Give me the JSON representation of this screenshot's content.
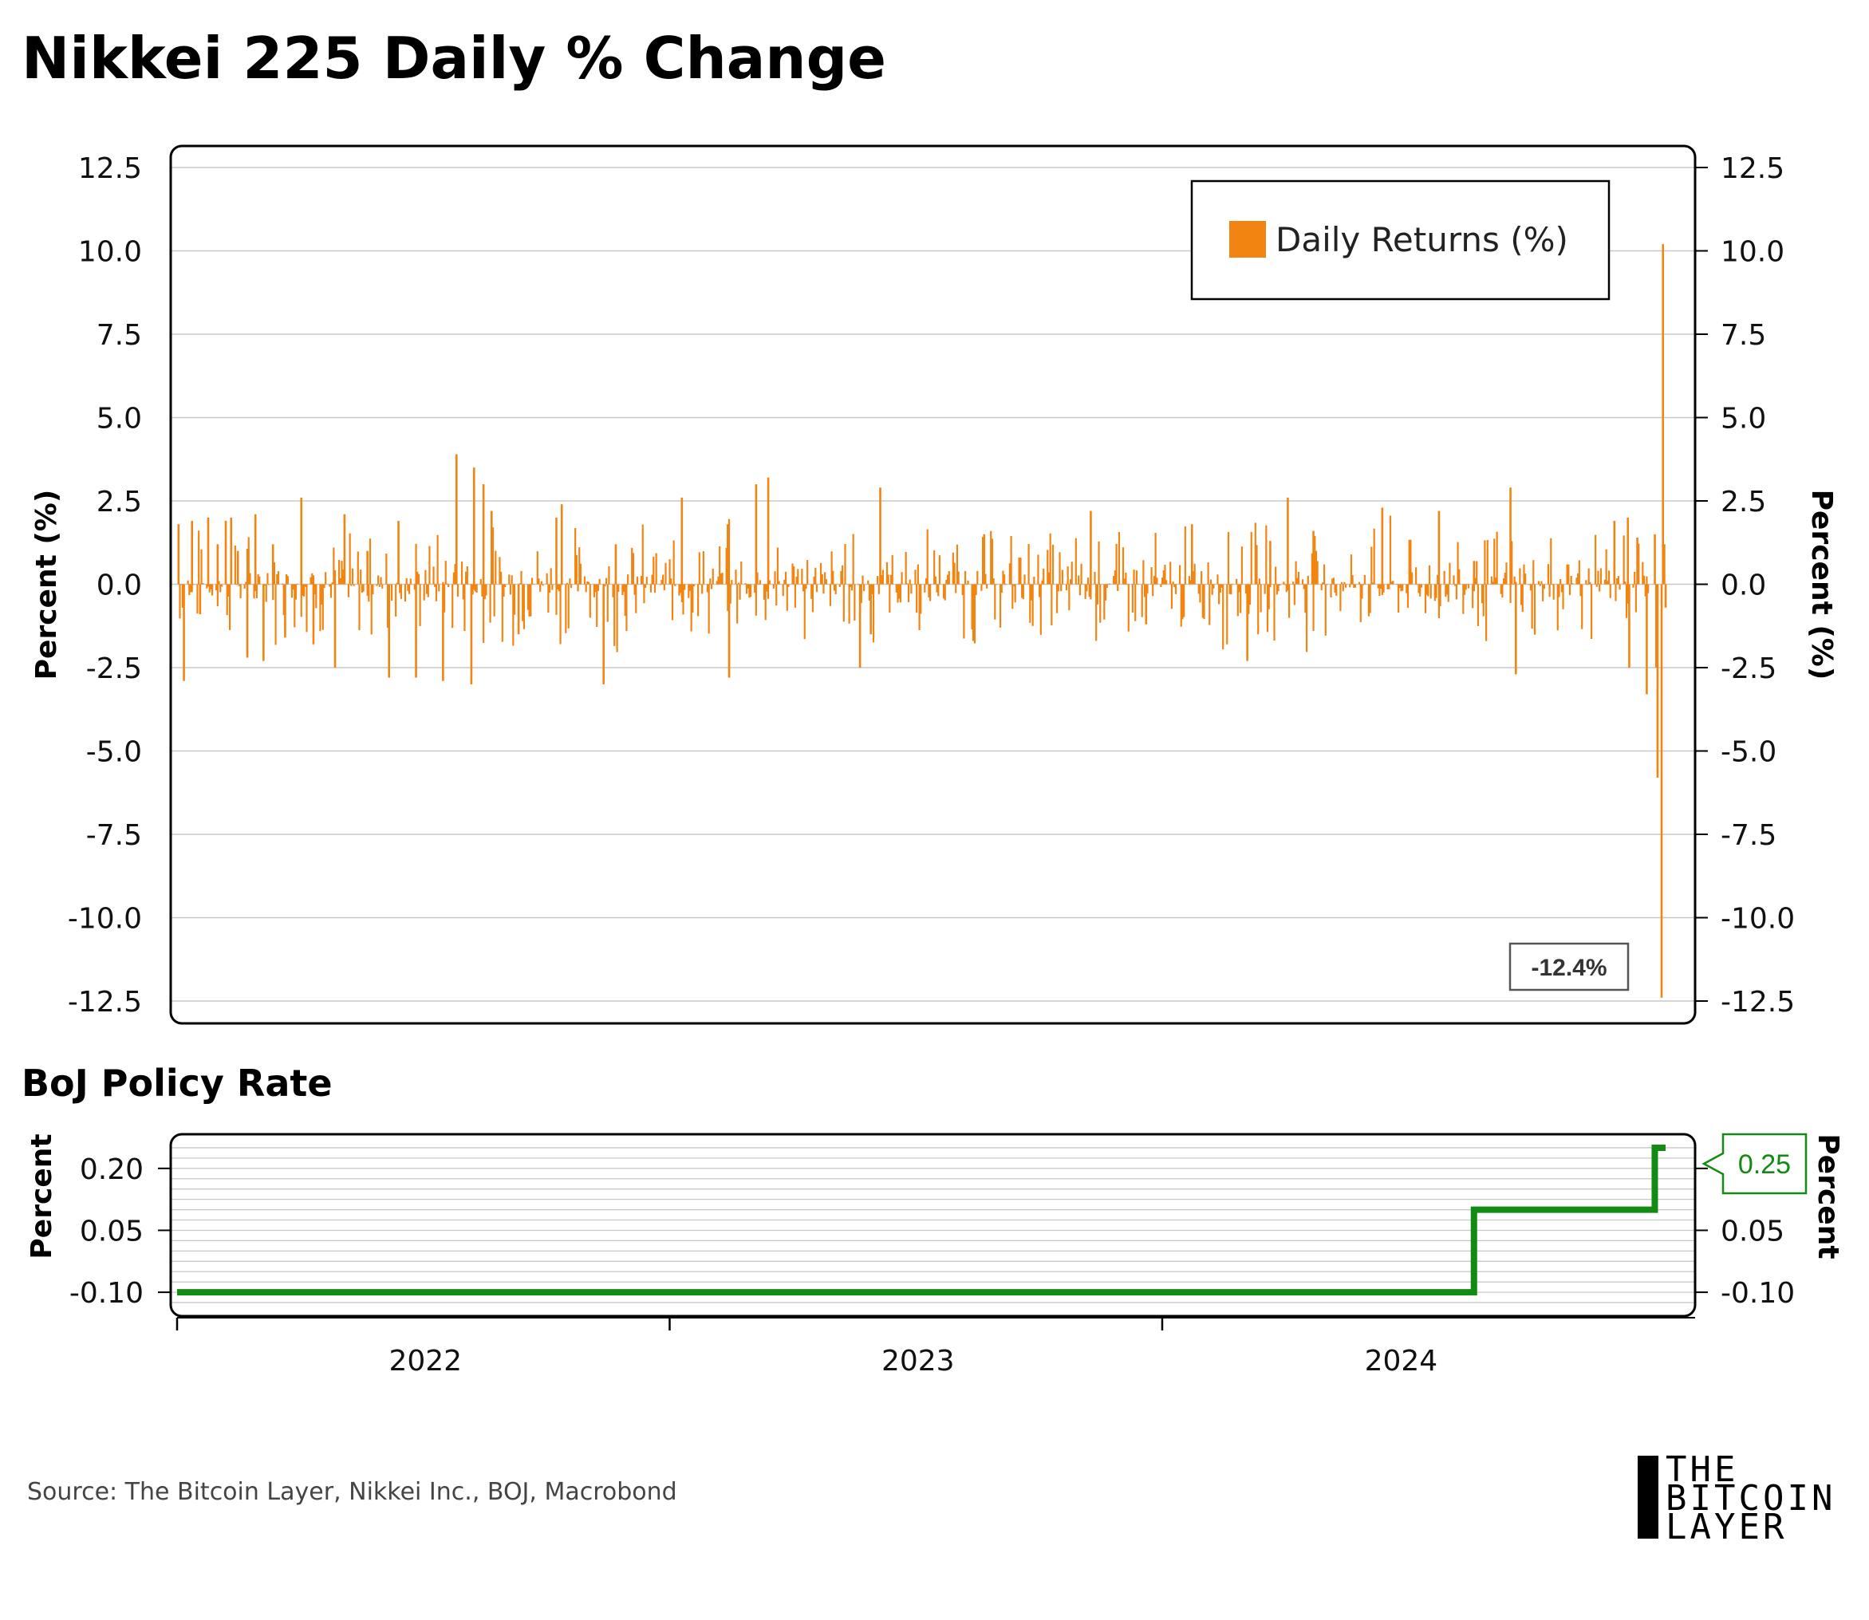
{
  "title": "Nikkei 225 Daily % Change",
  "subtitle": "BoJ Policy Rate",
  "source": "Source: The Bitcoin Layer, Nikkei Inc., BOJ, Macrobond",
  "logo": {
    "line1": "THE",
    "line2": "BITCOIN",
    "line3": "LAYER"
  },
  "colors": {
    "returns": "#f28512",
    "policy_rate": "#138a13",
    "grid": "#c8c8c8",
    "frame": "#000000"
  },
  "chart_data": [
    {
      "type": "bar",
      "title": "Nikkei 225 Daily % Change",
      "ylabel": "Percent (%)",
      "ylabel_right": "Percent (%)",
      "ylim": [
        -12.5,
        12.5
      ],
      "yticks": [
        "12.5",
        "10.0",
        "7.5",
        "5.0",
        "2.5",
        "0.0",
        "-2.5",
        "-5.0",
        "-7.5",
        "-10.0",
        "-12.5"
      ],
      "grid": true,
      "legend": {
        "position": "top-right",
        "entries": [
          "Daily Returns (%)"
        ]
      },
      "annotation": "-12.4%",
      "x_range": [
        "2021-08-01",
        "2024-08-08"
      ],
      "series": [
        {
          "name": "Daily Returns (%)",
          "note": "selected daily values read from chart",
          "x": [
            "2021-08-02",
            "2021-08-06",
            "2021-08-12",
            "2021-08-18",
            "2021-08-24",
            "2021-08-31",
            "2021-09-06",
            "2021-09-10",
            "2021-09-15",
            "2021-09-22",
            "2021-09-28",
            "2021-10-04",
            "2021-10-11",
            "2021-10-20",
            "2021-11-01",
            "2021-11-10",
            "2021-11-26",
            "2021-12-03",
            "2021-12-20",
            "2022-01-05",
            "2022-01-12",
            "2022-01-25",
            "2022-02-14",
            "2022-02-24",
            "2022-03-07",
            "2022-03-09",
            "2022-03-16",
            "2022-03-22",
            "2022-04-11",
            "2022-05-09",
            "2022-05-13",
            "2022-06-13",
            "2022-06-22",
            "2022-08-10",
            "2022-09-13",
            "2022-09-14",
            "2022-10-04",
            "2022-10-13",
            "2022-12-20",
            "2022-12-28",
            "2023-01-04",
            "2023-03-14",
            "2023-03-22",
            "2023-04-17",
            "2023-06-09",
            "2023-07-20",
            "2023-08-23",
            "2023-10-03",
            "2023-10-20",
            "2023-11-02",
            "2023-11-21",
            "2024-01-11",
            "2024-02-22",
            "2024-03-19",
            "2024-04-15",
            "2024-04-19",
            "2024-07-01",
            "2024-07-11",
            "2024-07-12",
            "2024-07-18",
            "2024-07-25",
            "2024-07-31",
            "2024-08-01",
            "2024-08-02",
            "2024-08-05",
            "2024-08-06",
            "2024-08-07",
            "2024-08-08"
          ],
          "values": [
            1.8,
            -2.9,
            1.9,
            -0.9,
            2.0,
            1.2,
            1.9,
            2.0,
            1.0,
            -2.2,
            2.1,
            -2.3,
            1.2,
            -1.6,
            2.6,
            -1.8,
            -2.5,
            2.1,
            1.0,
            -2.8,
            1.9,
            -2.8,
            -2.9,
            3.9,
            -3.0,
            3.5,
            3.0,
            2.2,
            -1.5,
            2.0,
            2.4,
            -3.0,
            1.2,
            2.6,
            1.8,
            -2.8,
            3.0,
            3.2,
            -2.5,
            -1.5,
            2.9,
            -1.7,
            1.5,
            0.8,
            2.2,
            -1.2,
            1.8,
            -2.3,
            1.3,
            2.6,
            1.6,
            2.3,
            2.2,
            0.7,
            2.9,
            -2.7,
            1.9,
            2.0,
            -2.5,
            1.4,
            -3.3,
            1.5,
            -2.5,
            -5.8,
            -12.4,
            10.2,
            1.2,
            -0.7
          ]
        }
      ]
    },
    {
      "type": "line",
      "title": "BoJ Policy Rate",
      "ylabel": "Percent",
      "ylabel_right": "Percent",
      "ylim": [
        -0.15,
        0.275
      ],
      "yticks": [
        "0.20",
        "0.05",
        "-0.10"
      ],
      "grid": true,
      "last_value_label": "0.25",
      "xticks": [
        "2022",
        "2023",
        "2024"
      ],
      "series": [
        {
          "name": "",
          "x": [
            "2021-08-01",
            "2024-03-19",
            "2024-07-31",
            "2024-08-08"
          ],
          "values": [
            -0.1,
            0.1,
            0.25,
            0.25
          ],
          "step": true
        }
      ]
    }
  ]
}
